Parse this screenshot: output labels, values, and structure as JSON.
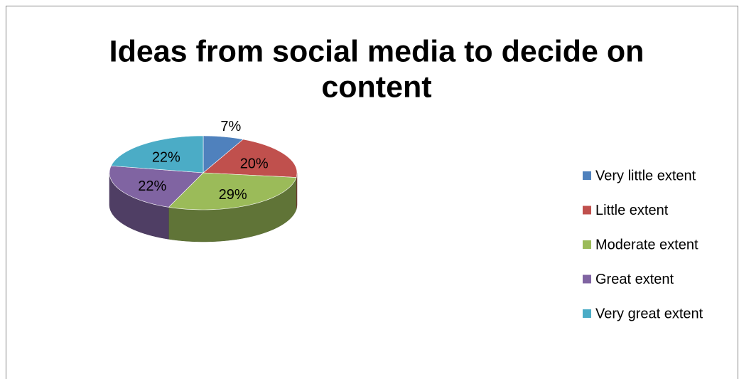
{
  "chart_data": {
    "type": "pie",
    "title": [
      "Ideas from social media to decide on",
      "content"
    ],
    "categories": [
      "Very little extent",
      "Little extent",
      "Moderate extent",
      "Great extent",
      "Very great extent"
    ],
    "values": [
      7,
      20,
      29,
      22,
      22
    ],
    "value_labels": [
      "7%",
      "20%",
      "29%",
      "22%",
      "22%"
    ],
    "colors": [
      "#4f81bd",
      "#c0504d",
      "#9bbb59",
      "#8064a2",
      "#4bacc6"
    ],
    "legend": "right",
    "style": "3d"
  }
}
